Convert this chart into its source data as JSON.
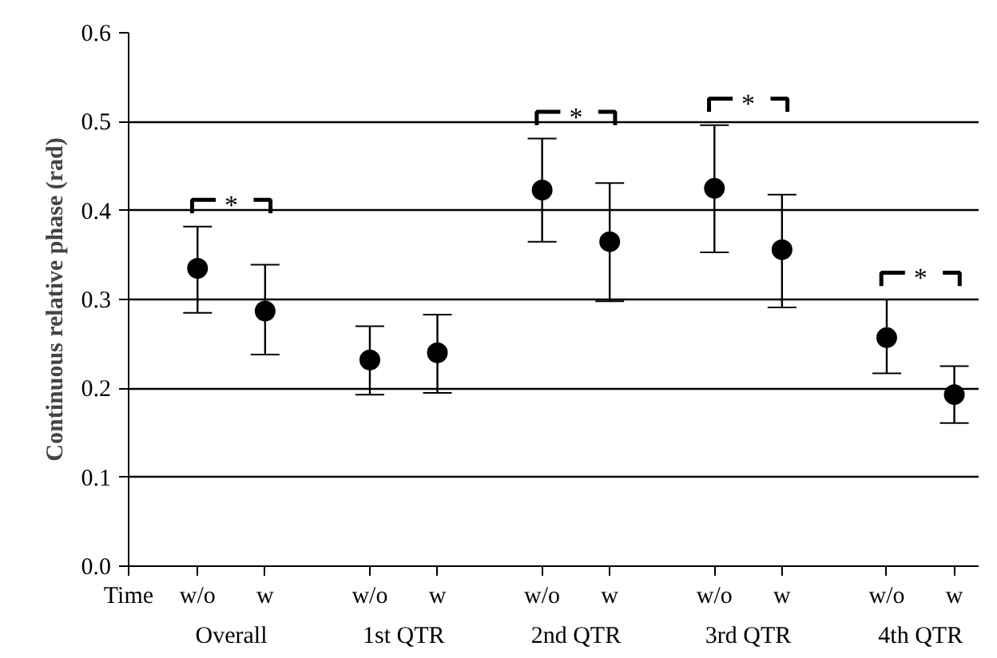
{
  "chart_data": {
    "type": "scatter",
    "ylabel": "Continuous relative phase (rad)",
    "categories": [
      "w/o",
      "w",
      "w/o",
      "w",
      "w/o",
      "w",
      "w/o",
      "w",
      "w/o",
      "w"
    ],
    "values": [
      0.335,
      0.287,
      0.232,
      0.24,
      0.423,
      0.365,
      0.425,
      0.356,
      0.257,
      0.193
    ],
    "errors": [
      [
        0.285,
        0.382
      ],
      [
        0.238,
        0.339
      ],
      [
        0.193,
        0.27
      ],
      [
        0.195,
        0.283
      ],
      [
        0.365,
        0.481
      ],
      [
        0.298,
        0.431
      ],
      [
        0.353,
        0.496
      ],
      [
        0.291,
        0.418
      ],
      [
        0.217,
        0.3
      ],
      [
        0.161,
        0.225
      ]
    ],
    "color": "#000000",
    "marker": "circle",
    "grid": "y",
    "ylim": [
      0,
      0.6
    ],
    "yticks": [
      {
        "value": 0,
        "label": "0.0"
      },
      {
        "value": 0.1,
        "label": "0.1"
      },
      {
        "value": 0.2,
        "label": "0.2"
      },
      {
        "value": 0.3,
        "label": "0.3"
      },
      {
        "value": 0.4,
        "label": "0.4"
      },
      {
        "value": 0.5,
        "label": "0.5"
      },
      {
        "value": 0.6,
        "label": "0.6"
      }
    ],
    "annotations": [
      "Time",
      "Overall",
      "1st QTR",
      "2nd QTR",
      "3rd QTR",
      "4th QTR",
      "*",
      "*",
      "*",
      "*"
    ]
  }
}
